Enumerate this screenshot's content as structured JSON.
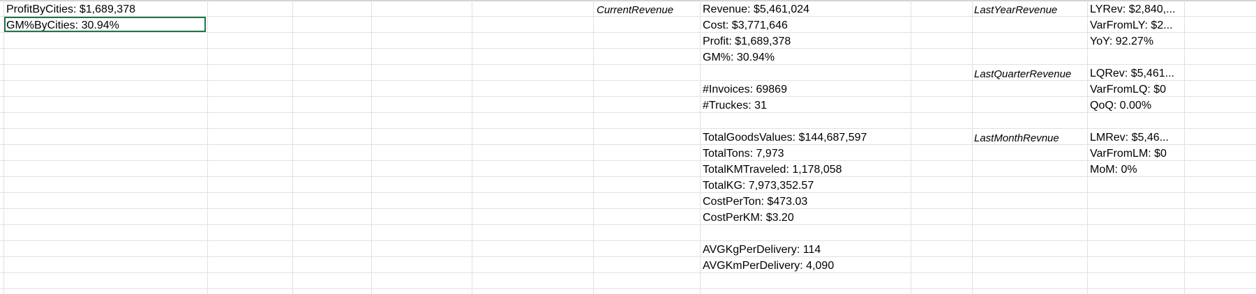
{
  "cells": {
    "profit_by_cities": "ProfitByCities: $1,689,378",
    "gm_by_cities": "GM%ByCities: 30.94%",
    "current_revenue_label": "CurrentRevenue",
    "revenue": "Revenue: $5,461,024",
    "cost": "Cost: $3,771,646",
    "profit": "Profit: $1,689,378",
    "gm": "GM%: 30.94%",
    "invoices": "#Invoices: 69869",
    "truckes": "#Truckes: 31",
    "total_goods_values": "TotalGoodsValues: $144,687,597",
    "total_tons": "TotalTons: 7,973",
    "total_km_traveled": "TotalKMTraveled: 1,178,058",
    "total_kg": "TotalKG: 7,973,352.57",
    "cost_per_ton": "CostPerTon: $473.03",
    "cost_per_km": "CostPerKM: $3.20",
    "avg_kg_per_delivery": "AVGKgPerDelivery: 114",
    "avg_km_per_delivery": "AVGKmPerDelivery: 4,090",
    "last_year_revenue_label": "LastYearRevenue",
    "ly_rev": "LYRev: $2,840,...",
    "var_from_ly": "VarFromLY: $2...",
    "yoy": "YoY: 92.27%",
    "last_quarter_revenue_label": "LastQuarterRevenue",
    "lq_rev": "LQRev: $5,461...",
    "var_from_lq": "VarFromLQ: $0",
    "qoq": "QoQ: 0.00%",
    "last_month_revenue_label": "LastMonthRevnue",
    "lm_rev": "LMRev: $5,46...",
    "var_from_lm": "VarFromLM: $0",
    "mom": "MoM: 0%"
  },
  "colors": {
    "selection": "#217346",
    "gridline": "#e1e1e1"
  }
}
